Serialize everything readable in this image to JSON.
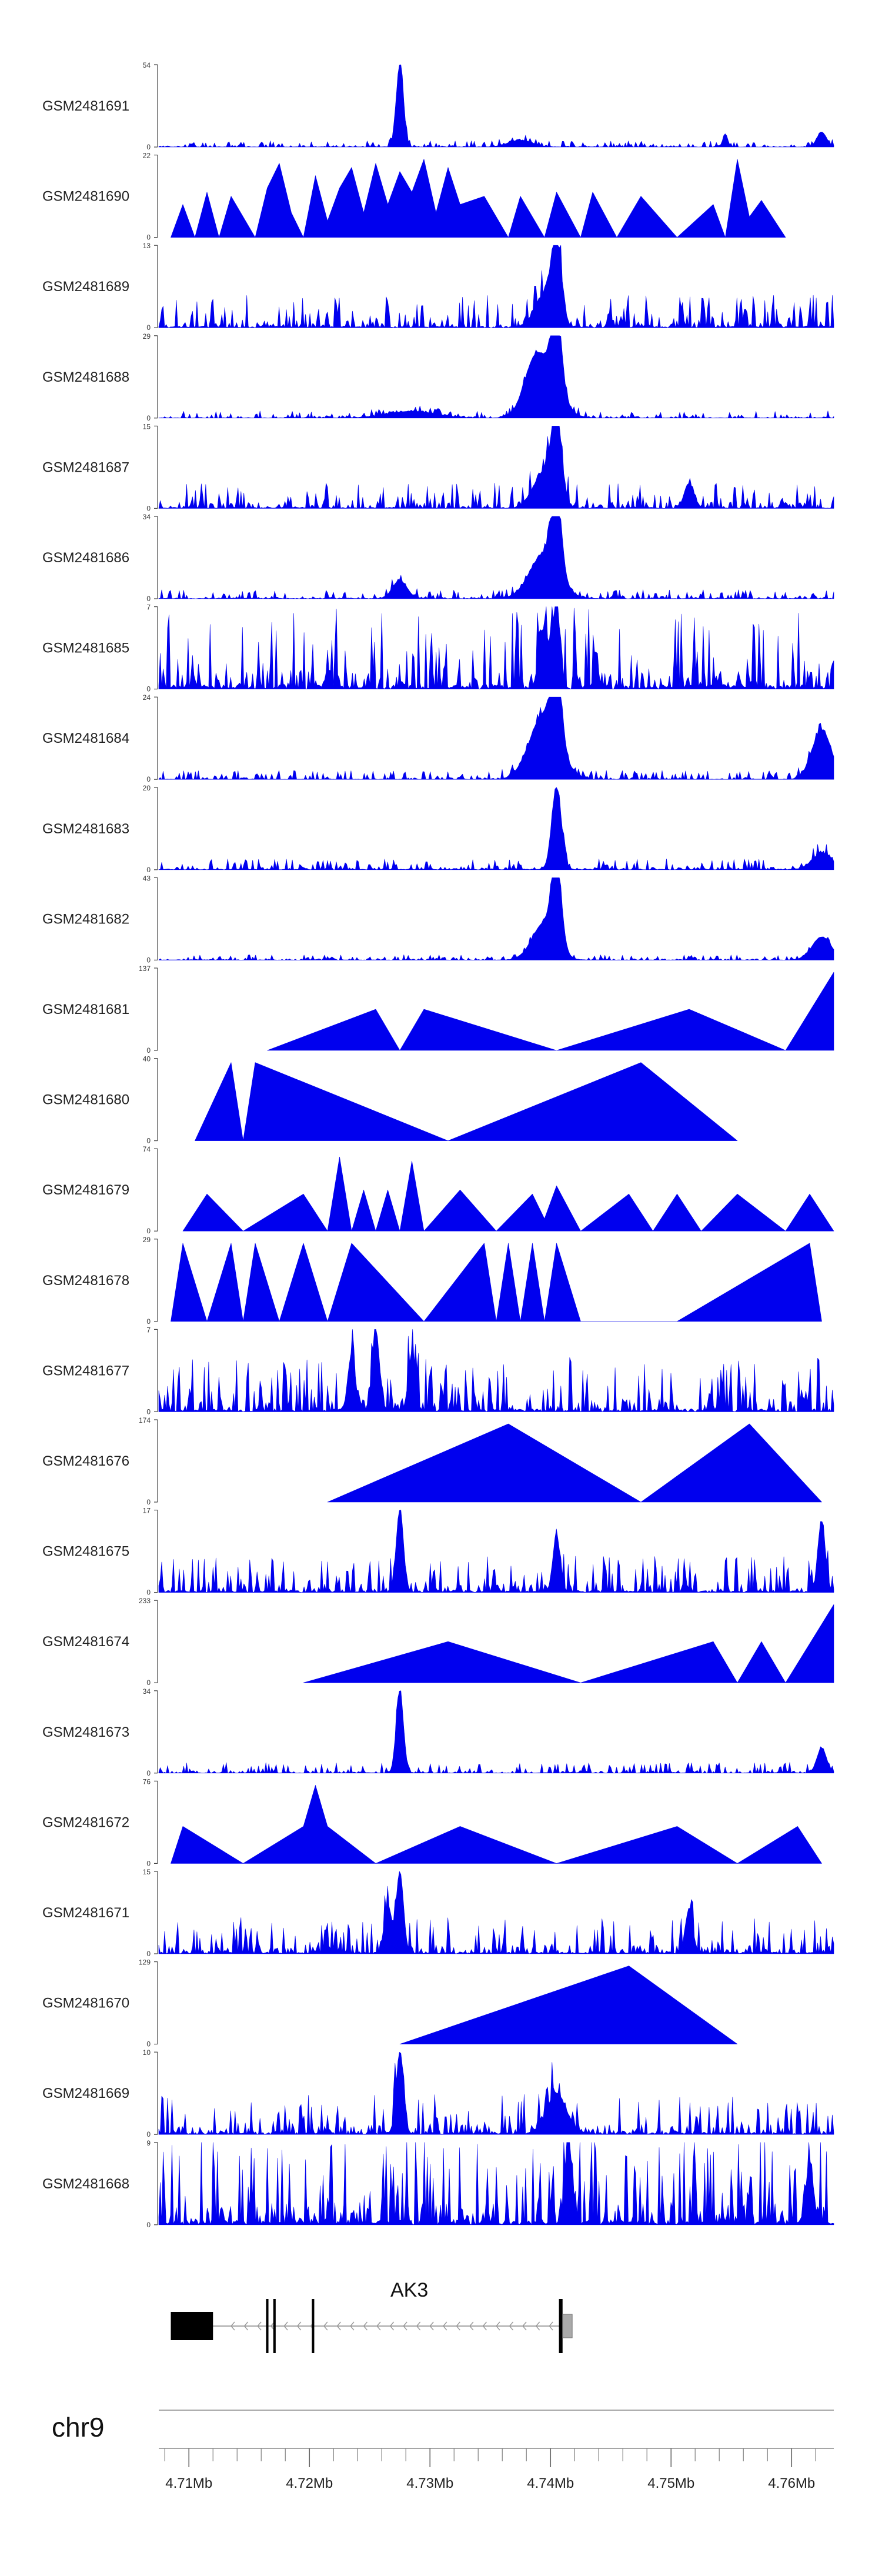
{
  "chart_data": {
    "type": "area",
    "title": "",
    "chromosome": "chr9",
    "genomic_range_mb": [
      4.7075,
      4.7635
    ],
    "x_ticks": [
      {
        "value": 4.71,
        "label": "4.71Mb"
      },
      {
        "value": 4.72,
        "label": "4.72Mb"
      },
      {
        "value": 4.73,
        "label": "4.73Mb"
      },
      {
        "value": 4.74,
        "label": "4.74Mb"
      },
      {
        "value": 4.75,
        "label": "4.75Mb"
      },
      {
        "value": 4.76,
        "label": "4.76Mb"
      }
    ],
    "minor_tick_step_mb": 0.002,
    "series": [
      {
        "name": "GSM2481691",
        "ymax": 54,
        "ymin": 0,
        "style": "peaks",
        "noise": 0.035,
        "peaks": [
          {
            "x": 4.7275,
            "h": 1.0,
            "w": 0.0003
          },
          {
            "x": 4.7545,
            "h": 0.16,
            "w": 0.0002
          },
          {
            "x": 4.7625,
            "h": 0.18,
            "w": 0.0004
          },
          {
            "x": 4.7375,
            "h": 0.08,
            "w": 0.001
          }
        ]
      },
      {
        "name": "GSM2481690",
        "ymax": 22,
        "ymin": 0,
        "style": "triangles",
        "vertices": [
          [
            4.7085,
            0
          ],
          [
            4.7095,
            0.4
          ],
          [
            4.7105,
            0
          ],
          [
            4.7115,
            0.55
          ],
          [
            4.7125,
            0
          ],
          [
            4.7135,
            0.5
          ],
          [
            4.7155,
            0
          ],
          [
            4.7165,
            0.6
          ],
          [
            4.7175,
            0.9
          ],
          [
            4.7185,
            0.3
          ],
          [
            4.7195,
            0
          ],
          [
            4.7205,
            0.75
          ],
          [
            4.7215,
            0.2
          ],
          [
            4.7225,
            0.6
          ],
          [
            4.7235,
            0.85
          ],
          [
            4.7245,
            0.3
          ],
          [
            4.7255,
            0.9
          ],
          [
            4.7265,
            0.4
          ],
          [
            4.7275,
            0.8
          ],
          [
            4.7285,
            0.55
          ],
          [
            4.7295,
            0.95
          ],
          [
            4.7305,
            0.3
          ],
          [
            4.7315,
            0.85
          ],
          [
            4.7325,
            0.4
          ],
          [
            4.7345,
            0.5
          ],
          [
            4.7365,
            0
          ],
          [
            4.7375,
            0.5
          ],
          [
            4.7395,
            0
          ],
          [
            4.7405,
            0.55
          ],
          [
            4.7425,
            0
          ],
          [
            4.7435,
            0.55
          ],
          [
            4.7455,
            0
          ],
          [
            4.7475,
            0.5
          ],
          [
            4.7505,
            0
          ],
          [
            4.7535,
            0.4
          ],
          [
            4.7545,
            0
          ],
          [
            4.7555,
            0.95
          ],
          [
            4.7565,
            0.25
          ],
          [
            4.7575,
            0.45
          ],
          [
            4.7595,
            0
          ]
        ]
      },
      {
        "name": "GSM2481689",
        "ymax": 13,
        "ymin": 0,
        "style": "peaks",
        "noise": 0.18,
        "peaks": [
          {
            "x": 4.7405,
            "h": 1.0,
            "w": 0.0004
          },
          {
            "x": 4.7395,
            "h": 0.4,
            "w": 0.0008
          }
        ]
      },
      {
        "name": "GSM2481688",
        "ymax": 29,
        "ymin": 0,
        "style": "peaks",
        "noise": 0.04,
        "peaks": [
          {
            "x": 4.7405,
            "h": 1.0,
            "w": 0.0004
          },
          {
            "x": 4.7395,
            "h": 0.6,
            "w": 0.0012
          },
          {
            "x": 4.7385,
            "h": 0.3,
            "w": 0.0008
          },
          {
            "x": 4.7285,
            "h": 0.08,
            "w": 0.002
          }
        ]
      },
      {
        "name": "GSM2481687",
        "ymax": 15,
        "ymin": 0,
        "style": "peaks",
        "noise": 0.14,
        "peaks": [
          {
            "x": 4.7405,
            "h": 1.0,
            "w": 0.0004
          },
          {
            "x": 4.7395,
            "h": 0.45,
            "w": 0.0009
          },
          {
            "x": 4.7515,
            "h": 0.3,
            "w": 0.0004
          }
        ]
      },
      {
        "name": "GSM2481686",
        "ymax": 34,
        "ymin": 0,
        "style": "peaks",
        "noise": 0.05,
        "peaks": [
          {
            "x": 4.7405,
            "h": 1.0,
            "w": 0.0004
          },
          {
            "x": 4.7395,
            "h": 0.55,
            "w": 0.0012
          },
          {
            "x": 4.7275,
            "h": 0.22,
            "w": 0.0006
          }
        ]
      },
      {
        "name": "GSM2481685",
        "ymax": 7,
        "ymin": 0,
        "style": "peaks",
        "noise": 0.45,
        "peaks": [
          {
            "x": 4.7405,
            "h": 1.0,
            "w": 0.0003
          },
          {
            "x": 4.7395,
            "h": 0.7,
            "w": 0.0004
          }
        ]
      },
      {
        "name": "GSM2481684",
        "ymax": 24,
        "ymin": 0,
        "style": "peaks",
        "noise": 0.05,
        "peaks": [
          {
            "x": 4.7405,
            "h": 1.0,
            "w": 0.0004
          },
          {
            "x": 4.7395,
            "h": 0.8,
            "w": 0.0012
          },
          {
            "x": 4.7625,
            "h": 0.6,
            "w": 0.0008
          }
        ]
      },
      {
        "name": "GSM2481683",
        "ymax": 20,
        "ymin": 0,
        "style": "peaks",
        "noise": 0.06,
        "peaks": [
          {
            "x": 4.7405,
            "h": 1.0,
            "w": 0.0004
          },
          {
            "x": 4.7625,
            "h": 0.2,
            "w": 0.0008
          }
        ]
      },
      {
        "name": "GSM2481682",
        "ymax": 43,
        "ymin": 0,
        "style": "peaks",
        "noise": 0.03,
        "peaks": [
          {
            "x": 4.7405,
            "h": 1.0,
            "w": 0.0004
          },
          {
            "x": 4.7395,
            "h": 0.45,
            "w": 0.001
          },
          {
            "x": 4.7625,
            "h": 0.28,
            "w": 0.0008
          }
        ]
      },
      {
        "name": "GSM2481681",
        "ymax": 137,
        "ymin": 0,
        "style": "triangles",
        "vertices": [
          [
            4.7165,
            0
          ],
          [
            4.7255,
            0.5
          ],
          [
            4.7275,
            0
          ],
          [
            4.7295,
            0.5
          ],
          [
            4.7405,
            0
          ],
          [
            4.7515,
            0.5
          ],
          [
            4.7595,
            0
          ],
          [
            4.7635,
            0.95
          ]
        ]
      },
      {
        "name": "GSM2481680",
        "ymax": 40,
        "ymin": 0,
        "style": "triangles",
        "vertices": [
          [
            4.7105,
            0
          ],
          [
            4.7135,
            0.95
          ],
          [
            4.7145,
            0
          ],
          [
            4.7155,
            0.95
          ],
          [
            4.7315,
            0
          ],
          [
            4.7475,
            0.95
          ],
          [
            4.7555,
            0
          ]
        ]
      },
      {
        "name": "GSM2481679",
        "ymax": 74,
        "ymin": 0,
        "style": "triangles",
        "vertices": [
          [
            4.7095,
            0
          ],
          [
            4.7115,
            0.45
          ],
          [
            4.7145,
            0
          ],
          [
            4.7195,
            0.45
          ],
          [
            4.7215,
            0
          ],
          [
            4.7225,
            0.9
          ],
          [
            4.7235,
            0
          ],
          [
            4.7245,
            0.5
          ],
          [
            4.7255,
            0
          ],
          [
            4.7265,
            0.5
          ],
          [
            4.7275,
            0
          ],
          [
            4.7285,
            0.85
          ],
          [
            4.7295,
            0
          ],
          [
            4.7325,
            0.5
          ],
          [
            4.7355,
            0
          ],
          [
            4.7385,
            0.45
          ],
          [
            4.7395,
            0.15
          ],
          [
            4.7405,
            0.55
          ],
          [
            4.7425,
            0
          ],
          [
            4.7465,
            0.45
          ],
          [
            4.7485,
            0
          ],
          [
            4.7505,
            0.45
          ],
          [
            4.7525,
            0
          ],
          [
            4.7555,
            0.45
          ],
          [
            4.7595,
            0
          ],
          [
            4.7615,
            0.45
          ],
          [
            4.7635,
            0
          ]
        ]
      },
      {
        "name": "GSM2481678",
        "ymax": 29,
        "ymin": 0,
        "style": "triangles",
        "vertices": [
          [
            4.7085,
            0
          ],
          [
            4.7095,
            0.95
          ],
          [
            4.7115,
            0
          ],
          [
            4.7135,
            0.95
          ],
          [
            4.7145,
            0
          ],
          [
            4.7155,
            0.95
          ],
          [
            4.7175,
            0
          ],
          [
            4.7195,
            0.95
          ],
          [
            4.7215,
            0
          ],
          [
            4.7235,
            0.95
          ],
          [
            4.7295,
            0
          ],
          [
            4.7345,
            0.95
          ],
          [
            4.7355,
            0
          ],
          [
            4.7365,
            0.95
          ],
          [
            4.7375,
            0
          ],
          [
            4.7385,
            0.95
          ],
          [
            4.7395,
            0
          ],
          [
            4.7405,
            0.95
          ],
          [
            4.7425,
            0
          ],
          [
            4.7505,
            0
          ],
          [
            4.7615,
            0.95
          ],
          [
            4.7625,
            0
          ]
        ]
      },
      {
        "name": "GSM2481677",
        "ymax": 7,
        "ymin": 0,
        "style": "peaks",
        "noise": 0.3,
        "peaks": [
          {
            "x": 4.7255,
            "h": 1.0,
            "w": 0.0003
          },
          {
            "x": 4.7235,
            "h": 0.7,
            "w": 0.0003
          },
          {
            "x": 4.7285,
            "h": 0.7,
            "w": 0.0003
          }
        ]
      },
      {
        "name": "GSM2481676",
        "ymax": 174,
        "ymin": 0,
        "style": "triangles",
        "vertices": [
          [
            4.7215,
            0
          ],
          [
            4.7365,
            0.95
          ],
          [
            4.7475,
            0
          ],
          [
            4.7565,
            0.95
          ],
          [
            4.7625,
            0
          ]
        ]
      },
      {
        "name": "GSM2481675",
        "ymax": 17,
        "ymin": 0,
        "style": "peaks",
        "noise": 0.2,
        "peaks": [
          {
            "x": 4.7275,
            "h": 1.0,
            "w": 0.0003
          },
          {
            "x": 4.7405,
            "h": 0.7,
            "w": 0.0003
          },
          {
            "x": 4.7625,
            "h": 0.85,
            "w": 0.0003
          }
        ]
      },
      {
        "name": "GSM2481674",
        "ymax": 233,
        "ymin": 0,
        "style": "triangles",
        "vertices": [
          [
            4.7195,
            0
          ],
          [
            4.7315,
            0.5
          ],
          [
            4.7425,
            0
          ],
          [
            4.7535,
            0.5
          ],
          [
            4.7555,
            0
          ],
          [
            4.7575,
            0.5
          ],
          [
            4.7595,
            0
          ],
          [
            4.7635,
            0.95
          ]
        ]
      },
      {
        "name": "GSM2481673",
        "ymax": 34,
        "ymin": 0,
        "style": "peaks",
        "noise": 0.06,
        "peaks": [
          {
            "x": 4.7275,
            "h": 1.0,
            "w": 0.0003
          },
          {
            "x": 4.7625,
            "h": 0.3,
            "w": 0.0004
          }
        ]
      },
      {
        "name": "GSM2481672",
        "ymax": 76,
        "ymin": 0,
        "style": "triangles",
        "vertices": [
          [
            4.7085,
            0
          ],
          [
            4.7095,
            0.45
          ],
          [
            4.7145,
            0
          ],
          [
            4.7195,
            0.45
          ],
          [
            4.7205,
            0.95
          ],
          [
            4.7215,
            0.45
          ],
          [
            4.7255,
            0
          ],
          [
            4.7325,
            0.45
          ],
          [
            4.7405,
            0
          ],
          [
            4.7505,
            0.45
          ],
          [
            4.7555,
            0
          ],
          [
            4.7605,
            0.45
          ],
          [
            4.7625,
            0
          ]
        ]
      },
      {
        "name": "GSM2481671",
        "ymax": 15,
        "ymin": 0,
        "style": "peaks",
        "noise": 0.2,
        "peaks": [
          {
            "x": 4.7275,
            "h": 1.0,
            "w": 0.0003
          },
          {
            "x": 4.7265,
            "h": 0.6,
            "w": 0.0003
          },
          {
            "x": 4.7515,
            "h": 0.55,
            "w": 0.0003
          }
        ]
      },
      {
        "name": "GSM2481670",
        "ymax": 129,
        "ymin": 0,
        "style": "triangles",
        "vertices": [
          [
            4.7275,
            0
          ],
          [
            4.7465,
            0.95
          ],
          [
            4.7555,
            0
          ]
        ]
      },
      {
        "name": "GSM2481669",
        "ymax": 10,
        "ymin": 0,
        "style": "peaks",
        "noise": 0.22,
        "peaks": [
          {
            "x": 4.7275,
            "h": 1.0,
            "w": 0.0003
          },
          {
            "x": 4.7405,
            "h": 0.5,
            "w": 0.0008
          }
        ]
      },
      {
        "name": "GSM2481668",
        "ymax": 9,
        "ymin": 0,
        "style": "peaks",
        "noise": 0.5,
        "peaks": [
          {
            "x": 4.7415,
            "h": 1.0,
            "w": 0.0003
          },
          {
            "x": 4.7615,
            "h": 0.75,
            "w": 0.0003
          }
        ]
      }
    ],
    "gene": {
      "name": "AK3",
      "strand": "-",
      "start_mb": 4.7085,
      "end_mb": 4.7415,
      "exons": [
        {
          "start": 4.7085,
          "end": 4.712,
          "type": "utr"
        },
        {
          "start": 4.7164,
          "end": 4.7166,
          "type": "cds"
        },
        {
          "start": 4.717,
          "end": 4.7172,
          "type": "cds"
        },
        {
          "start": 4.7202,
          "end": 4.7204,
          "type": "cds"
        },
        {
          "start": 4.7407,
          "end": 4.741,
          "type": "cds"
        },
        {
          "start": 4.741,
          "end": 4.7418,
          "type": "utr_small"
        }
      ]
    }
  }
}
